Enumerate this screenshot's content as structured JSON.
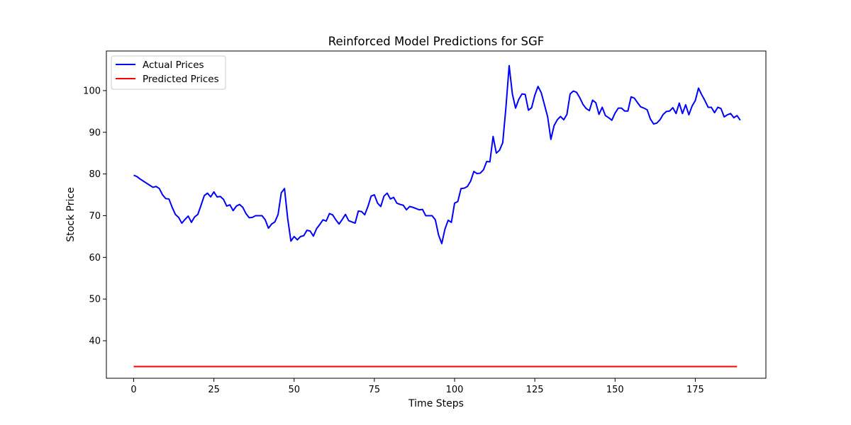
{
  "chart_data": {
    "type": "line",
    "title": "Reinforced Model Predictions for SGF",
    "xlabel": "Time Steps",
    "ylabel": "Stock Price",
    "xlim": [
      -8.5,
      197
    ],
    "ylim": [
      31,
      109.5
    ],
    "xticks": [
      0,
      25,
      50,
      75,
      100,
      125,
      150,
      175
    ],
    "yticks": [
      40,
      50,
      60,
      70,
      80,
      90,
      100
    ],
    "grid": false,
    "legend_position": "top-left",
    "series": [
      {
        "name": "Actual Prices",
        "color": "#0000ff",
        "values": [
          79.7,
          79.4,
          78.8,
          78.3,
          77.8,
          77.3,
          76.8,
          77.0,
          76.5,
          75.0,
          74.1,
          74.0,
          72.0,
          70.3,
          69.6,
          68.2,
          69.1,
          69.9,
          68.4,
          69.7,
          70.3,
          72.5,
          74.8,
          75.4,
          74.5,
          75.7,
          74.5,
          74.6,
          73.9,
          72.3,
          72.6,
          71.2,
          72.3,
          72.7,
          72.0,
          70.5,
          69.5,
          69.6,
          70.0,
          70.0,
          70.0,
          69.0,
          67.0,
          68.0,
          68.5,
          70.3,
          75.5,
          76.5,
          69.3,
          63.9,
          65.0,
          64.2,
          65.0,
          65.2,
          66.5,
          66.3,
          65.1,
          66.9,
          67.9,
          69.0,
          68.7,
          70.5,
          70.2,
          69.0,
          68.0,
          69.1,
          70.3,
          68.8,
          68.5,
          68.2,
          71.1,
          71.0,
          70.2,
          72.2,
          74.7,
          75.0,
          73.0,
          72.2,
          74.7,
          75.4,
          74.0,
          74.4,
          73.0,
          72.7,
          72.5,
          71.4,
          72.2,
          72.0,
          71.7,
          71.4,
          71.5,
          70.0,
          70.0,
          70.0,
          69.0,
          65.4,
          63.3,
          66.8,
          68.9,
          68.4,
          73.0,
          73.4,
          76.5,
          76.6,
          77.0,
          78.3,
          80.6,
          80.1,
          80.2,
          81.0,
          83.0,
          82.9,
          89.0,
          85.0,
          85.7,
          87.5,
          96.0,
          106.0,
          99.2,
          95.8,
          97.9,
          99.2,
          99.1,
          95.3,
          95.9,
          98.9,
          101.0,
          99.5,
          96.6,
          93.7,
          88.3,
          91.6,
          93.0,
          93.8,
          93.0,
          94.3,
          99.2,
          99.9,
          99.6,
          98.3,
          96.7,
          95.7,
          95.2,
          97.7,
          97.1,
          94.3,
          96.0,
          94.0,
          93.5,
          92.9,
          94.6,
          95.8,
          95.8,
          95.1,
          95.1,
          98.5,
          98.2,
          97.1,
          96.1,
          95.8,
          95.4,
          93.2,
          92.0,
          92.2,
          93.0,
          94.3,
          95.0,
          95.1,
          95.9,
          94.5,
          97.0,
          94.5,
          96.6,
          94.2,
          96.3,
          97.6,
          100.6,
          99.0,
          97.6,
          96.0,
          96.0,
          94.7,
          96.0,
          95.7,
          93.7,
          94.2,
          94.5,
          93.5,
          94.0,
          92.9
        ]
      },
      {
        "name": "Predicted Prices",
        "color": "#ff0000",
        "constant_value": 33.8,
        "x_range": [
          0,
          188
        ]
      }
    ]
  }
}
